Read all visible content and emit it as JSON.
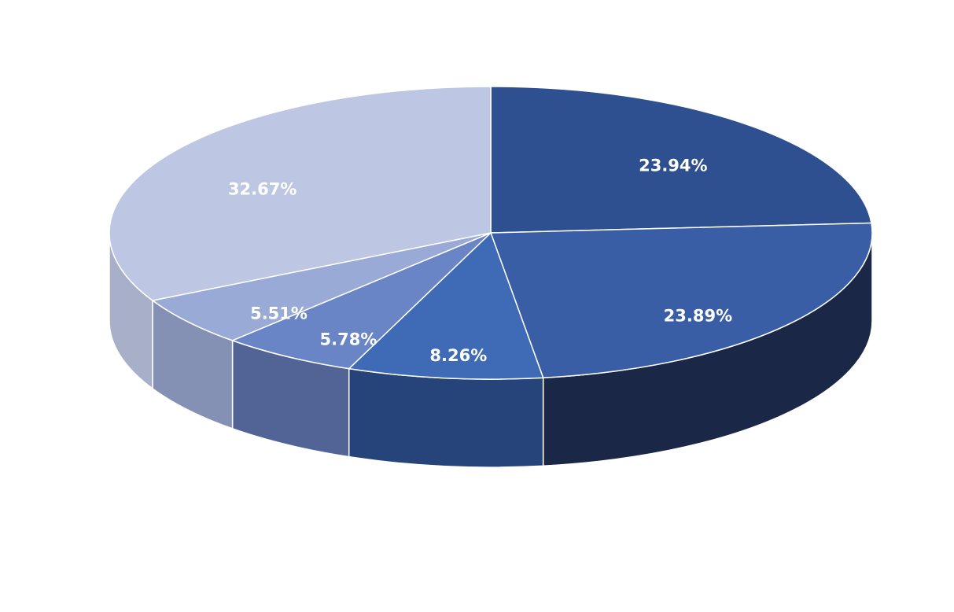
{
  "chart_data": {
    "type": "pie3d",
    "values": [
      23.94,
      23.89,
      8.26,
      5.78,
      5.51,
      32.67
    ],
    "value_labels": [
      "23.94%",
      "23.89%",
      "8.26%",
      "5.78%",
      "5.51%",
      "32.67%"
    ],
    "colors": [
      "#2f5090",
      "#3a5ea6",
      "#3e6ab6",
      "#6a85c6",
      "#9aaad6",
      "#bdc7e3"
    ],
    "side_colors": [
      "#1b2b4f",
      "#1b2747",
      "#26437a",
      "#526495",
      "#8491b4",
      "#a7b0c8"
    ]
  }
}
